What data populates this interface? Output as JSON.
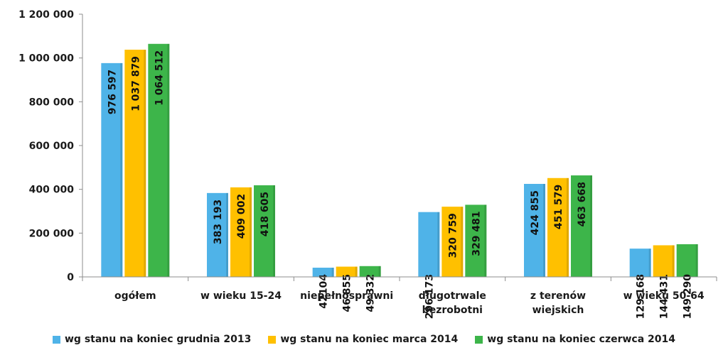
{
  "chart_data": {
    "type": "bar",
    "categories": [
      [
        "ogółem"
      ],
      [
        "w wieku 15-24"
      ],
      [
        "niepełnosprawni"
      ],
      [
        "długotrwale",
        "bezrobotni"
      ],
      [
        "z terenów",
        "wiejskich"
      ],
      [
        "w wieku 50-64"
      ]
    ],
    "series": [
      {
        "name": "wg stanu na koniec grudnia 2013",
        "color": "#4fb3e8",
        "values": [
          976597,
          383193,
          42104,
          296173,
          424855,
          129168
        ],
        "labels": [
          "976 597",
          "383 193",
          "42104",
          "296 173",
          "424 855",
          "129 168"
        ]
      },
      {
        "name": "wg stanu na koniec marca 2014",
        "color": "#ffc000",
        "values": [
          1037879,
          409002,
          46855,
          320759,
          451579,
          144431
        ],
        "labels": [
          "1 037 879",
          "409 002",
          "46 855",
          "320 759",
          "451 579",
          "144 431"
        ]
      },
      {
        "name": "wg stanu na koniec czerwca 2014",
        "color": "#3db54a",
        "values": [
          1064512,
          418605,
          49332,
          329481,
          463668,
          149290
        ],
        "labels": [
          "1 064 512",
          "418 605",
          "49 332",
          "329 481",
          "463 668",
          "149 290"
        ]
      }
    ],
    "yticks": [
      0,
      200000,
      400000,
      600000,
      800000,
      1000000,
      1200000
    ],
    "ytick_labels": [
      "0",
      "200 000",
      "400 000",
      "600 000",
      "800 000",
      "1 000 000",
      "1 200 000"
    ],
    "ylim": [
      0,
      1200000
    ],
    "grid": false,
    "legend_position": "bottom"
  }
}
